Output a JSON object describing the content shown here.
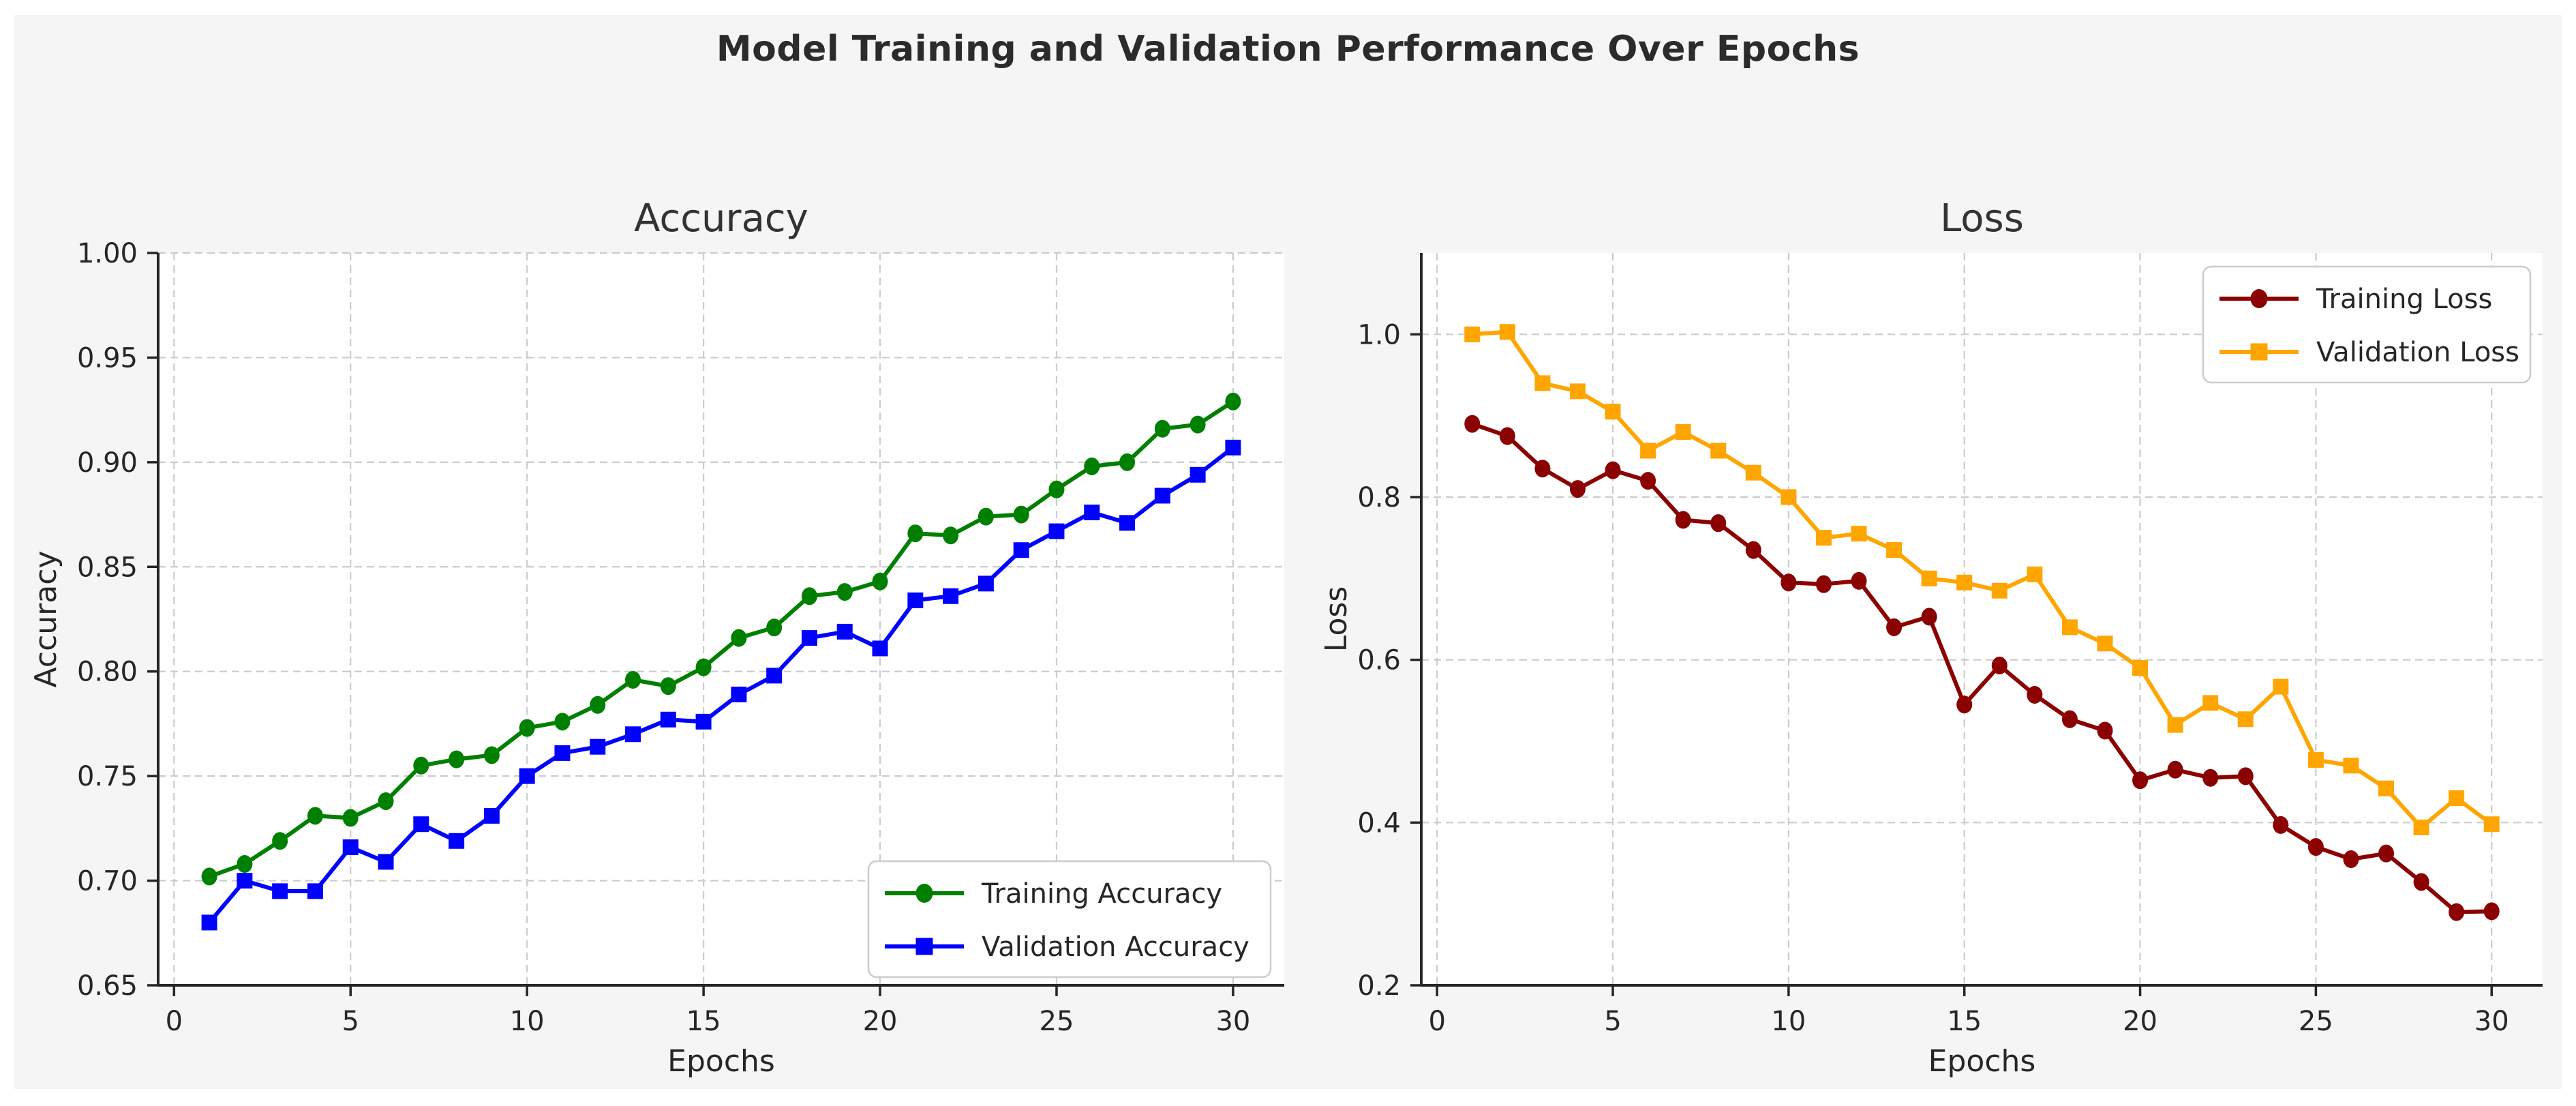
{
  "figure": {
    "title": "Model Training and Validation Performance Over Epochs",
    "background_color": "#f5f5f5",
    "page_background": "#ffffff",
    "text_color": "#2b2b2b",
    "grid_color": "#cccccc",
    "axis_color": "#262626",
    "plot_background": "#ffffff"
  },
  "chart_data": [
    {
      "type": "line",
      "title": "Accuracy",
      "xlabel": "Epochs",
      "ylabel": "Accuracy",
      "x": [
        1,
        2,
        3,
        4,
        5,
        6,
        7,
        8,
        9,
        10,
        11,
        12,
        13,
        14,
        15,
        16,
        17,
        18,
        19,
        20,
        21,
        22,
        23,
        24,
        25,
        26,
        27,
        28,
        29,
        30
      ],
      "series": [
        {
          "name": "Training Accuracy",
          "color": "#008000",
          "marker": "circle",
          "values": [
            0.702,
            0.708,
            0.719,
            0.731,
            0.73,
            0.738,
            0.755,
            0.758,
            0.76,
            0.773,
            0.776,
            0.784,
            0.796,
            0.793,
            0.802,
            0.816,
            0.821,
            0.836,
            0.838,
            0.843,
            0.866,
            0.865,
            0.874,
            0.875,
            0.887,
            0.898,
            0.9,
            0.916,
            0.918,
            0.929
          ]
        },
        {
          "name": "Validation Accuracy",
          "color": "#0000ff",
          "marker": "square",
          "values": [
            0.68,
            0.7,
            0.695,
            0.695,
            0.716,
            0.709,
            0.727,
            0.719,
            0.731,
            0.75,
            0.761,
            0.764,
            0.77,
            0.777,
            0.776,
            0.789,
            0.798,
            0.816,
            0.819,
            0.811,
            0.834,
            0.836,
            0.842,
            0.858,
            0.867,
            0.876,
            0.871,
            0.884,
            0.894,
            0.907
          ]
        }
      ],
      "xlim": [
        -0.45,
        31.45
      ],
      "ylim": [
        0.65,
        1.0
      ],
      "xticks": [
        0,
        5,
        10,
        15,
        20,
        25,
        30
      ],
      "yticks": [
        1.0,
        0.95,
        0.9,
        0.85,
        0.8,
        0.75,
        0.7,
        0.65
      ],
      "ytick_decimals": 2,
      "grid": true,
      "grid_style": "dashed",
      "legend_position": "lower-right"
    },
    {
      "type": "line",
      "title": "Loss",
      "xlabel": "Epochs",
      "ylabel": "Loss",
      "x": [
        1,
        2,
        3,
        4,
        5,
        6,
        7,
        8,
        9,
        10,
        11,
        12,
        13,
        14,
        15,
        16,
        17,
        18,
        19,
        20,
        21,
        22,
        23,
        24,
        25,
        26,
        27,
        28,
        29,
        30
      ],
      "series": [
        {
          "name": "Training Loss",
          "color": "#8B0000",
          "marker": "circle",
          "values": [
            0.89,
            0.875,
            0.835,
            0.81,
            0.833,
            0.82,
            0.772,
            0.768,
            0.735,
            0.695,
            0.693,
            0.697,
            0.64,
            0.653,
            0.545,
            0.593,
            0.557,
            0.527,
            0.513,
            0.452,
            0.465,
            0.455,
            0.457,
            0.397,
            0.37,
            0.355,
            0.362,
            0.327,
            0.29,
            0.291
          ]
        },
        {
          "name": "Validation Loss",
          "color": "#FFA500",
          "marker": "square",
          "values": [
            1.0,
            1.003,
            0.94,
            0.93,
            0.905,
            0.857,
            0.88,
            0.857,
            0.83,
            0.8,
            0.75,
            0.755,
            0.735,
            0.7,
            0.695,
            0.685,
            0.705,
            0.64,
            0.62,
            0.59,
            0.52,
            0.547,
            0.527,
            0.567,
            0.477,
            0.47,
            0.442,
            0.394,
            0.43,
            0.398
          ]
        }
      ],
      "xlim": [
        -0.45,
        31.45
      ],
      "ylim": [
        0.2,
        1.1
      ],
      "xticks": [
        0,
        5,
        10,
        15,
        20,
        25,
        30
      ],
      "yticks": [
        1.0,
        0.8,
        0.6,
        0.4,
        0.2
      ],
      "ytick_decimals": 1,
      "grid": true,
      "grid_style": "dashed",
      "legend_position": "upper-right"
    }
  ]
}
